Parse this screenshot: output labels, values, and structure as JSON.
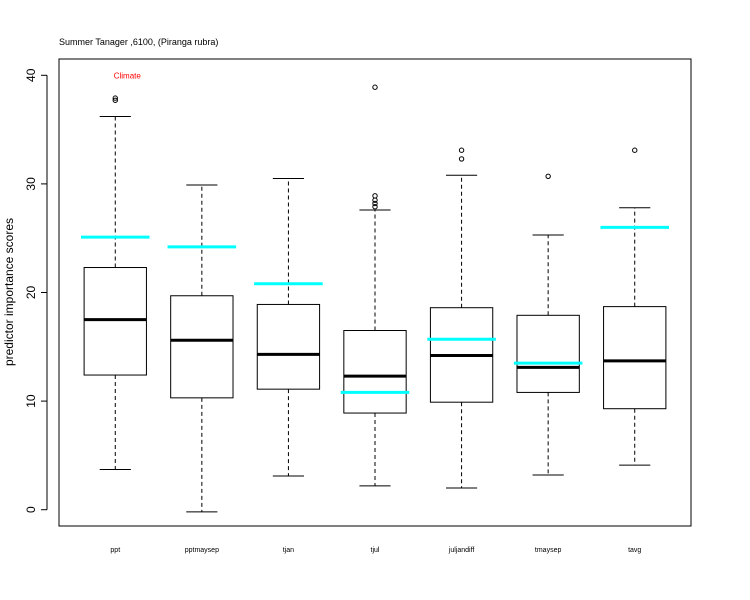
{
  "chart_data": {
    "type": "boxplot",
    "title": "Summer Tanager ,6100, (Piranga rubra)",
    "annotation": "Climate",
    "ylabel": "predictor importance scores",
    "xlabel": "",
    "ylim": [
      -1.5,
      41.5
    ],
    "yticks": [
      0,
      10,
      20,
      30,
      40
    ],
    "grid": false,
    "legend": "none",
    "colors": {
      "box": "#000000",
      "median": "#000000",
      "reference": "#00ffff",
      "annotation": "#ff0000"
    },
    "categories": [
      "ppt",
      "pptmaysep",
      "tjan",
      "tjul",
      "juljandiff",
      "tmaysep",
      "tavg"
    ],
    "boxes": [
      {
        "name": "ppt",
        "whisker_low": 3.7,
        "q1": 12.4,
        "median": 17.5,
        "q3": 22.3,
        "whisker_high": 36.2,
        "outliers": [
          37.7,
          37.9
        ],
        "reference": 25.1
      },
      {
        "name": "pptmaysep",
        "whisker_low": -0.2,
        "q1": 10.3,
        "median": 15.6,
        "q3": 19.7,
        "whisker_high": 29.9,
        "outliers": [],
        "reference": 24.2
      },
      {
        "name": "tjan",
        "whisker_low": 3.1,
        "q1": 11.1,
        "median": 14.3,
        "q3": 18.9,
        "whisker_high": 30.5,
        "outliers": [],
        "reference": 20.8
      },
      {
        "name": "tjul",
        "whisker_low": 2.2,
        "q1": 8.9,
        "median": 12.3,
        "q3": 16.5,
        "whisker_high": 27.6,
        "outliers": [
          27.9,
          28.2,
          28.5,
          28.9,
          38.9
        ],
        "reference": 10.8
      },
      {
        "name": "juljandiff",
        "whisker_low": 2.0,
        "q1": 9.9,
        "median": 14.2,
        "q3": 18.6,
        "whisker_high": 30.8,
        "outliers": [
          32.3,
          33.1
        ],
        "reference": 15.7
      },
      {
        "name": "tmaysep",
        "whisker_low": 3.2,
        "q1": 10.8,
        "median": 13.1,
        "q3": 17.9,
        "whisker_high": 25.3,
        "outliers": [
          30.7
        ],
        "reference": 13.5
      },
      {
        "name": "tavg",
        "whisker_low": 4.1,
        "q1": 9.3,
        "median": 13.7,
        "q3": 18.7,
        "whisker_high": 27.8,
        "outliers": [
          33.1
        ],
        "reference": 26.0
      }
    ]
  }
}
